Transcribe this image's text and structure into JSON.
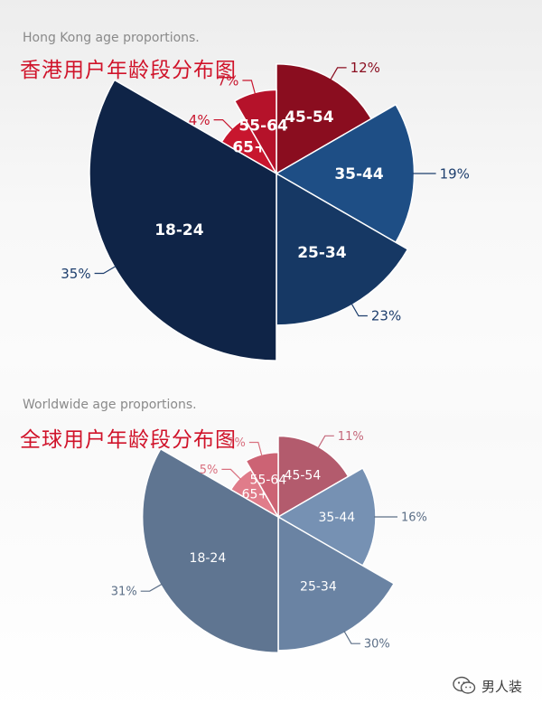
{
  "chart_data": [
    {
      "type": "polar-area",
      "subtitle": "Hong Kong age proportions.",
      "title": "香港用户年龄段分布图",
      "unit": "%",
      "slices": [
        {
          "label": "45-54",
          "value": 12,
          "value_label": "12%",
          "color": "#8a0d1f",
          "label_color": "#8a0d1f"
        },
        {
          "label": "35-44",
          "value": 19,
          "value_label": "19%",
          "color": "#1e4e85",
          "label_color": "#1e3f6e"
        },
        {
          "label": "25-34",
          "value": 23,
          "value_label": "23%",
          "color": "#163864",
          "label_color": "#1e3f6e"
        },
        {
          "label": "18-24",
          "value": 35,
          "value_label": "35%",
          "color": "#0f2447",
          "label_color": "#1e3f6e"
        },
        {
          "label": "65+",
          "value": 4,
          "value_label": "4%",
          "color": "#c8162e",
          "label_color": "#c8162e"
        },
        {
          "label": "55-64",
          "value": 7,
          "value_label": "7%",
          "color": "#b5122a",
          "label_color": "#c8162e"
        }
      ]
    },
    {
      "type": "polar-area",
      "subtitle": "Worldwide age proportions.",
      "title": "全球用户年龄段分布图",
      "unit": "%",
      "slices": [
        {
          "label": "45-54",
          "value": 11,
          "value_label": "11%",
          "color": "#b35b6d",
          "label_color": "#c4677a"
        },
        {
          "label": "35-44",
          "value": 16,
          "value_label": "16%",
          "color": "#7691b3",
          "label_color": "#5c6f87"
        },
        {
          "label": "25-34",
          "value": 30,
          "value_label": "30%",
          "color": "#6a83a3",
          "label_color": "#5c6f87"
        },
        {
          "label": "18-24",
          "value": 31,
          "value_label": "31%",
          "color": "#5f7591",
          "label_color": "#5c6f87"
        },
        {
          "label": "65+",
          "value": 5,
          "value_label": "5%",
          "color": "#e07c8a",
          "label_color": "#d9707f"
        },
        {
          "label": "55-64",
          "value": 7,
          "value_label": "7%",
          "color": "#cc6374",
          "label_color": "#d9707f"
        }
      ]
    }
  ],
  "watermark": {
    "text": "男人装",
    "icon": "wechat-icon"
  }
}
